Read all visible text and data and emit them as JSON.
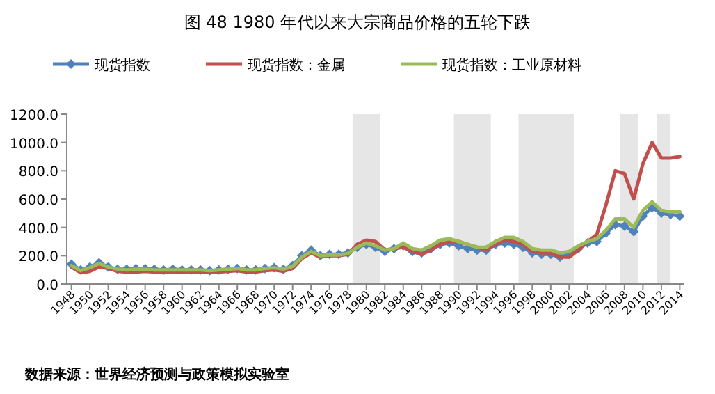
{
  "chart_data": {
    "type": "line",
    "title": "图 48 1980 年代以来大宗商品价格的五轮下跌",
    "x": [
      1948,
      1949,
      1950,
      1951,
      1952,
      1953,
      1954,
      1955,
      1956,
      1957,
      1958,
      1959,
      1960,
      1961,
      1962,
      1963,
      1964,
      1965,
      1966,
      1967,
      1968,
      1969,
      1970,
      1971,
      1972,
      1973,
      1974,
      1975,
      1976,
      1977,
      1978,
      1979,
      1980,
      1981,
      1982,
      1983,
      1984,
      1985,
      1986,
      1987,
      1988,
      1989,
      1990,
      1991,
      1992,
      1993,
      1994,
      1995,
      1996,
      1997,
      1998,
      1999,
      2000,
      2001,
      2002,
      2003,
      2004,
      2005,
      2006,
      2007,
      2008,
      2009,
      2010,
      2011,
      2012,
      2013,
      2014
    ],
    "series": [
      {
        "name": "现货指数",
        "color": "#4f81bd",
        "marker": "diamond",
        "values": [
          140,
          100,
          120,
          150,
          120,
          105,
          105,
          110,
          110,
          105,
          100,
          105,
          100,
          100,
          100,
          95,
          100,
          105,
          110,
          100,
          100,
          110,
          115,
          105,
          130,
          200,
          240,
          200,
          210,
          210,
          220,
          260,
          280,
          260,
          230,
          250,
          270,
          230,
          220,
          250,
          280,
          290,
          270,
          250,
          240,
          240,
          280,
          290,
          280,
          260,
          220,
          210,
          210,
          190,
          210,
          250,
          290,
          300,
          360,
          420,
          410,
          370,
          480,
          540,
          500,
          490,
          480
        ]
      },
      {
        "name": "现货指数：金属",
        "color": "#c0504d",
        "values": [
          120,
          80,
          90,
          120,
          110,
          90,
          85,
          85,
          90,
          85,
          80,
          85,
          85,
          85,
          85,
          80,
          85,
          90,
          95,
          85,
          85,
          95,
          100,
          90,
          110,
          180,
          220,
          190,
          200,
          200,
          210,
          280,
          310,
          300,
          240,
          250,
          260,
          230,
          210,
          240,
          280,
          300,
          300,
          280,
          260,
          240,
          280,
          310,
          300,
          280,
          230,
          220,
          220,
          190,
          190,
          240,
          300,
          350,
          560,
          800,
          780,
          600,
          850,
          1000,
          890,
          890,
          900
        ]
      },
      {
        "name": "现货指数：工业原材料",
        "color": "#9bbb59",
        "values": [
          130,
          95,
          115,
          145,
          120,
          105,
          100,
          105,
          105,
          100,
          100,
          100,
          100,
          100,
          100,
          95,
          100,
          105,
          110,
          100,
          100,
          110,
          115,
          105,
          125,
          190,
          230,
          200,
          205,
          205,
          215,
          260,
          290,
          270,
          240,
          250,
          290,
          250,
          240,
          270,
          310,
          320,
          300,
          280,
          260,
          260,
          300,
          330,
          330,
          300,
          250,
          240,
          240,
          220,
          230,
          270,
          300,
          320,
          380,
          460,
          460,
          400,
          520,
          580,
          520,
          510,
          510
        ]
      }
    ],
    "xlim": [
      1947.5,
      2014.5
    ],
    "xticks": [
      1948,
      1950,
      1952,
      1954,
      1956,
      1958,
      1960,
      1962,
      1964,
      1966,
      1968,
      1970,
      1972,
      1974,
      1976,
      1978,
      1980,
      1982,
      1984,
      1986,
      1988,
      1990,
      1992,
      1994,
      1996,
      1998,
      2000,
      2002,
      2004,
      2006,
      2008,
      2010,
      2012,
      2014
    ],
    "ylim": [
      0,
      1200
    ],
    "yticks": [
      {
        "value": 0,
        "label": "0.0"
      },
      {
        "value": 200,
        "label": "200.0"
      },
      {
        "value": 400,
        "label": "400.0"
      },
      {
        "value": 600,
        "label": "600.0"
      },
      {
        "value": 800,
        "label": "800.0"
      },
      {
        "value": 1000,
        "label": "1000.0"
      },
      {
        "value": 1200,
        "label": "1200.0"
      }
    ],
    "bands": [
      {
        "axis": "x",
        "from": 1978.5,
        "to": 1981.5,
        "color": "#e6e6e6"
      },
      {
        "axis": "x",
        "from": 1989.5,
        "to": 1993.5,
        "color": "#e6e6e6"
      },
      {
        "axis": "x",
        "from": 1996.5,
        "to": 2002.5,
        "color": "#e6e6e6"
      },
      {
        "axis": "x",
        "from": 2007.5,
        "to": 2009.5,
        "color": "#e6e6e6"
      },
      {
        "axis": "x",
        "from": 2011.5,
        "to": 2013.0,
        "color": "#e6e6e6"
      }
    ],
    "legend": "top",
    "annotations": [
      "数据来源：世界经济预测与政策模拟实验室"
    ]
  }
}
